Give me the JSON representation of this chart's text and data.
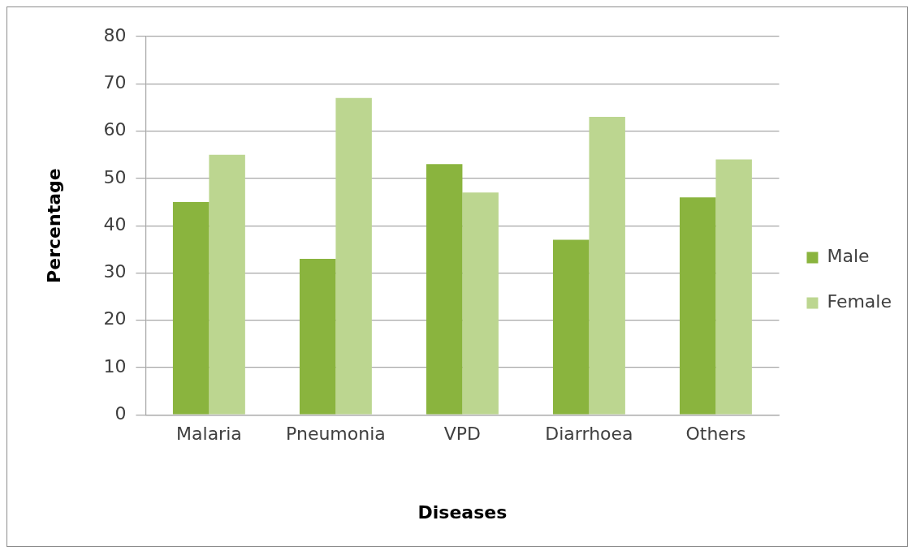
{
  "chart_data": {
    "type": "bar",
    "xlabel": "Diseases",
    "ylabel": "Percentage",
    "categories": [
      "Malaria",
      "Pneumonia",
      "VPD",
      "Diarrhoea",
      "Others"
    ],
    "series": [
      {
        "name": "Male",
        "color": "#8ab43e",
        "values": [
          45,
          33,
          53,
          37,
          46
        ]
      },
      {
        "name": "Female",
        "color": "#bcd690",
        "values": [
          55,
          67,
          47,
          63,
          54
        ]
      }
    ],
    "ylim": [
      0,
      80
    ],
    "yticks": [
      0,
      10,
      20,
      30,
      40,
      50,
      60,
      70,
      80
    ],
    "grid": "y",
    "legend": "right"
  }
}
